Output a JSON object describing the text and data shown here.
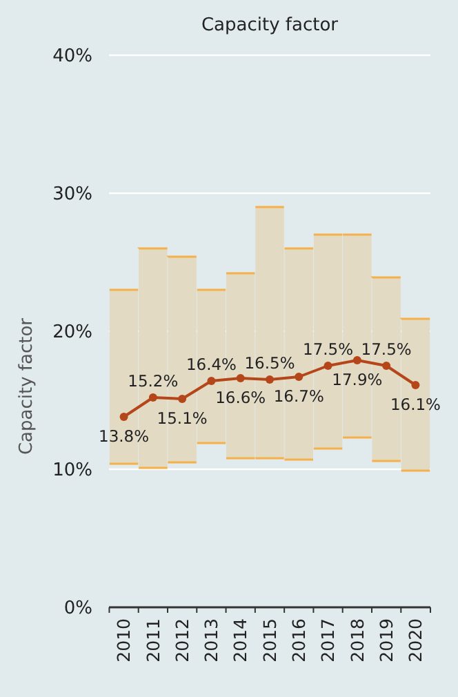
{
  "chart_data": {
    "type": "bar",
    "title": "Capacity factor",
    "ylabel": "Capacity factor",
    "categories": [
      "2010",
      "2011",
      "2012",
      "2013",
      "2014",
      "2015",
      "2016",
      "2017",
      "2018",
      "2019",
      "2020"
    ],
    "ylim": [
      0,
      40
    ],
    "yticks": [
      {
        "value": 0,
        "label": "0%"
      },
      {
        "value": 10,
        "label": "10%"
      },
      {
        "value": 20,
        "label": "20%"
      },
      {
        "value": 30,
        "label": "30%"
      },
      {
        "value": 40,
        "label": "40%"
      }
    ],
    "grid": "y",
    "series": [
      {
        "color": "#e3dac4",
        "base": [
          10.4,
          10.1,
          10.5,
          11.9,
          10.8,
          10.8,
          10.7,
          11.5,
          12.3,
          10.6,
          9.9
        ],
        "values": [
          12.6,
          15.9,
          14.9,
          11.1,
          13.4,
          18.2,
          15.3,
          15.5,
          14.7,
          13.3,
          11.0
        ]
      },
      {
        "type": "line",
        "color": "#b5461a",
        "marker": "circle",
        "line_style": "solid",
        "values": [
          13.8,
          15.2,
          15.1,
          16.4,
          16.6,
          16.5,
          16.7,
          17.5,
          17.9,
          17.5,
          16.1
        ],
        "value_labels": [
          "13.8%",
          "15.2%",
          "15.1%",
          "16.4%",
          "16.6%",
          "16.5%",
          "16.7%",
          "17.5%",
          "17.9%",
          "17.5%",
          "16.1%"
        ]
      }
    ]
  }
}
